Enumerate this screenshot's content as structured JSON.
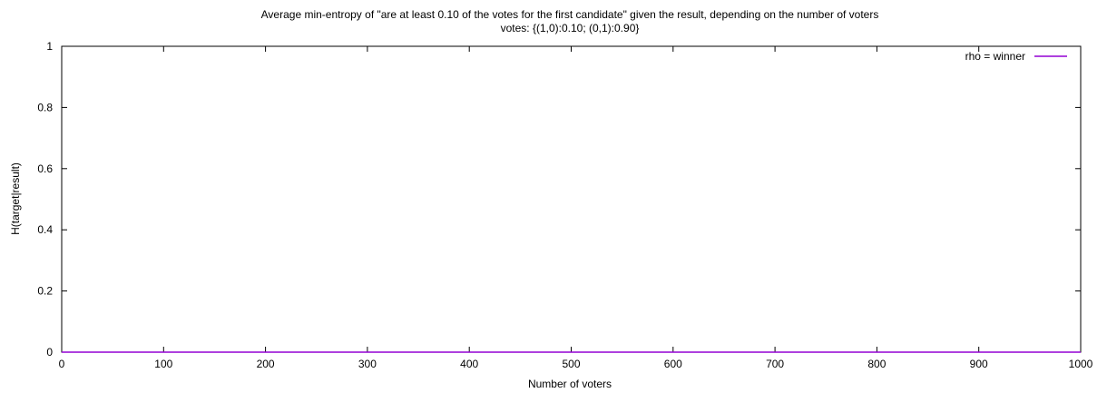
{
  "chart_data": {
    "type": "line",
    "title": "Average min-entropy of \"are at least 0.10 of the votes for the first candidate\" given the result, depending on the number of voters",
    "subtitle": "votes: {(1,0):0.10; (0,1):0.90}",
    "xlabel": "Number of voters",
    "ylabel": "H(target|result)",
    "xlim": [
      0,
      1000
    ],
    "ylim": [
      0,
      1
    ],
    "xticks": [
      0,
      100,
      200,
      300,
      400,
      500,
      600,
      700,
      800,
      900,
      1000
    ],
    "yticks": [
      0,
      0.2,
      0.4,
      0.6,
      0.8,
      1
    ],
    "ytick_labels": [
      "0",
      "0.2",
      "0.4",
      "0.6",
      "0.8",
      "1"
    ],
    "grid": false,
    "legend": {
      "position": "top-right"
    },
    "series": [
      {
        "name": "rho = winner",
        "color": "#9400d3",
        "x": [
          0,
          100,
          200,
          300,
          400,
          500,
          600,
          700,
          800,
          900,
          1000
        ],
        "y": [
          0,
          0,
          0,
          0,
          0,
          0,
          0,
          0,
          0,
          0,
          0
        ]
      }
    ]
  }
}
